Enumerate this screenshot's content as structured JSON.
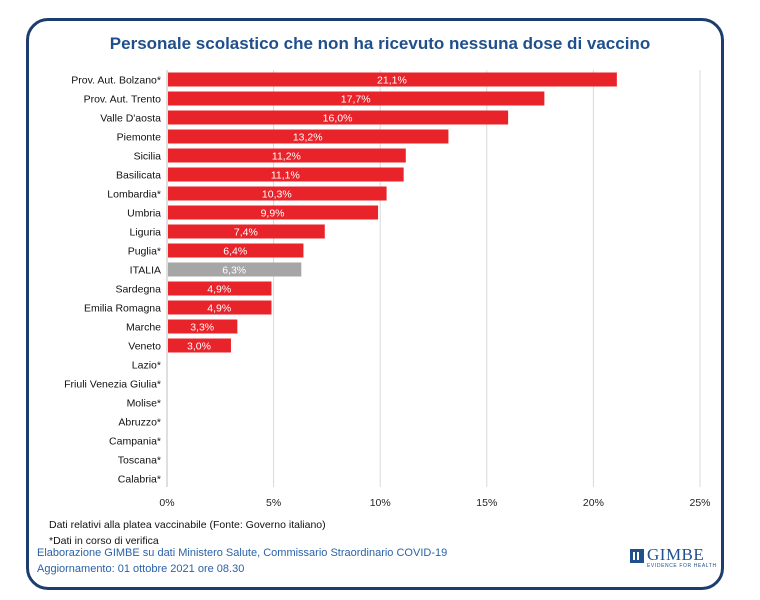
{
  "chart_data": {
    "type": "bar",
    "orientation": "horizontal",
    "title": "Personale scolastico che non ha ricevuto nessuna dose di vaccino",
    "categories": [
      "Prov. Aut. Bolzano*",
      "Prov. Aut. Trento",
      "Valle D'aosta",
      "Piemonte",
      "Sicilia",
      "Basilicata",
      "Lombardia*",
      "Umbria",
      "Liguria",
      "Puglia*",
      "ITALIA",
      "Sardegna",
      "Emilia Romagna",
      "Marche",
      "Veneto",
      "Lazio*",
      "Friuli Venezia Giulia*",
      "Molise*",
      "Abruzzo*",
      "Campania*",
      "Toscana*",
      "Calabria*"
    ],
    "values": [
      21.1,
      17.7,
      16.0,
      13.2,
      11.2,
      11.1,
      10.3,
      9.9,
      7.4,
      6.4,
      6.3,
      4.9,
      4.9,
      3.3,
      3.0,
      null,
      null,
      null,
      null,
      null,
      null,
      null
    ],
    "data_labels": [
      "21,1%",
      "17,7%",
      "16,0%",
      "13,2%",
      "11,2%",
      "11,1%",
      "10,3%",
      "9,9%",
      "7,4%",
      "6,4%",
      "6,3%",
      "4,9%",
      "4,9%",
      "3,3%",
      "3,0%",
      "",
      "",
      "",
      "",
      "",
      "",
      ""
    ],
    "highlight_category": "ITALIA",
    "xlim": [
      0,
      25
    ],
    "x_ticks": [
      0,
      5,
      10,
      15,
      20,
      25
    ],
    "x_tick_labels": [
      "0%",
      "5%",
      "10%",
      "15%",
      "20%",
      "25%"
    ],
    "grid": true,
    "colors": {
      "bar": "#e8232a",
      "highlight": "#a6a6a6",
      "grid": "#d9d9d9",
      "title": "#1f4f8c"
    }
  },
  "notes": {
    "source": "Dati relativi alla platea vaccinabile (Fonte: Governo italiano)",
    "footnote": "*Dati in corso di verifica"
  },
  "credits": {
    "elaboration": "Elaborazione GIMBE su dati Ministero Salute, Commissario Straordinario COVID-19",
    "update": "Aggiornamento: 01 ottobre 2021 ore 08.30"
  },
  "logo": {
    "name": "GIMBE",
    "tagline": "EVIDENCE FOR HEALTH",
    "icon": "gimbe-logo-icon"
  }
}
